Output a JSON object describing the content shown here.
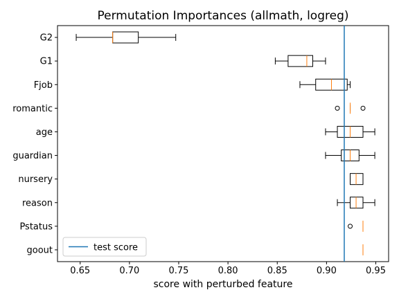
{
  "chart_data": {
    "type": "box",
    "title": "Permutation Importances (allmath, logreg)",
    "xlabel": "score with perturbed feature",
    "ylabel": "",
    "xlim": [
      0.627,
      0.963
    ],
    "xticks": [
      0.65,
      0.7,
      0.75,
      0.8,
      0.85,
      0.9,
      0.95
    ],
    "xtick_labels": [
      "0.65",
      "0.70",
      "0.75",
      "0.80",
      "0.85",
      "0.90",
      "0.95"
    ],
    "grid": false,
    "legend": {
      "entries": [
        "test score"
      ],
      "location": "lower-left"
    },
    "reference_line": {
      "name": "test score",
      "x": 0.918,
      "color": "#1f77b4"
    },
    "colors": {
      "box": "#000000",
      "median": "#ff7f0e",
      "reference": "#1f77b4"
    },
    "features": [
      {
        "name": "G2",
        "whisker_low": 0.646,
        "q1": 0.683,
        "median": 0.683,
        "q3": 0.709,
        "whisker_high": 0.747,
        "outliers": []
      },
      {
        "name": "G1",
        "whisker_low": 0.848,
        "q1": 0.861,
        "median": 0.88,
        "q3": 0.886,
        "whisker_high": 0.899,
        "outliers": []
      },
      {
        "name": "Fjob",
        "whisker_low": 0.873,
        "q1": 0.889,
        "median": 0.905,
        "q3": 0.921,
        "whisker_high": 0.924,
        "outliers": []
      },
      {
        "name": "romantic",
        "whisker_low": 0.924,
        "q1": 0.924,
        "median": 0.924,
        "q3": 0.924,
        "whisker_high": 0.924,
        "outliers": [
          0.911,
          0.937
        ]
      },
      {
        "name": "age",
        "whisker_low": 0.899,
        "q1": 0.911,
        "median": 0.924,
        "q3": 0.937,
        "whisker_high": 0.949,
        "outliers": []
      },
      {
        "name": "guardian",
        "whisker_low": 0.899,
        "q1": 0.915,
        "median": 0.924,
        "q3": 0.933,
        "whisker_high": 0.949,
        "outliers": []
      },
      {
        "name": "nursery",
        "whisker_low": 0.924,
        "q1": 0.924,
        "median": 0.93,
        "q3": 0.937,
        "whisker_high": 0.937,
        "outliers": []
      },
      {
        "name": "reason",
        "whisker_low": 0.911,
        "q1": 0.924,
        "median": 0.93,
        "q3": 0.937,
        "whisker_high": 0.949,
        "outliers": []
      },
      {
        "name": "Pstatus",
        "whisker_low": 0.937,
        "q1": 0.937,
        "median": 0.937,
        "q3": 0.937,
        "whisker_high": 0.937,
        "outliers": [
          0.924
        ]
      },
      {
        "name": "goout",
        "whisker_low": 0.937,
        "q1": 0.937,
        "median": 0.937,
        "q3": 0.937,
        "whisker_high": 0.937,
        "outliers": []
      }
    ]
  }
}
